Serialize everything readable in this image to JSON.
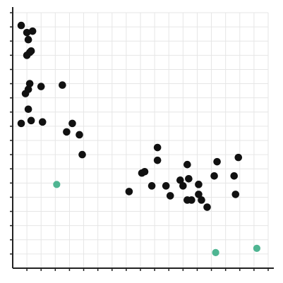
{
  "chart_data": {
    "type": "scatter",
    "title": "",
    "xlabel": "",
    "ylabel": "",
    "xlim": [
      0,
      18
    ],
    "ylim": [
      0,
      18
    ],
    "grid": true,
    "colors": {
      "primary": "#111111",
      "highlight": "#4fb592",
      "grid": "#e6e6e6",
      "axis": "#222222"
    },
    "series": [
      {
        "values": [
          [
            0.6,
            17.1
          ],
          [
            1.0,
            16.6
          ],
          [
            1.4,
            16.7
          ],
          [
            1.1,
            16.1
          ],
          [
            1.2,
            15.2
          ],
          [
            1.0,
            15.0
          ],
          [
            1.3,
            15.3
          ],
          [
            1.2,
            13.0
          ],
          [
            0.9,
            12.3
          ],
          [
            1.1,
            12.6
          ],
          [
            2.0,
            12.8
          ],
          [
            1.1,
            11.2
          ],
          [
            0.6,
            10.2
          ],
          [
            1.3,
            10.4
          ],
          [
            2.1,
            10.3
          ],
          [
            3.5,
            12.9
          ],
          [
            3.8,
            9.6
          ],
          [
            4.2,
            10.2
          ],
          [
            4.7,
            9.4
          ],
          [
            4.9,
            8.0
          ],
          [
            8.2,
            5.4
          ],
          [
            9.1,
            6.7
          ],
          [
            9.3,
            6.8
          ],
          [
            9.8,
            5.8
          ],
          [
            10.2,
            8.5
          ],
          [
            10.2,
            7.6
          ],
          [
            10.8,
            5.8
          ],
          [
            11.1,
            5.1
          ],
          [
            11.8,
            6.2
          ],
          [
            12.0,
            5.8
          ],
          [
            12.3,
            7.3
          ],
          [
            12.4,
            6.3
          ],
          [
            12.3,
            4.8
          ],
          [
            12.6,
            4.8
          ],
          [
            13.1,
            5.9
          ],
          [
            13.1,
            5.2
          ],
          [
            13.3,
            4.8
          ],
          [
            13.7,
            4.3
          ],
          [
            14.2,
            6.5
          ],
          [
            14.4,
            7.5
          ],
          [
            15.6,
            6.5
          ],
          [
            15.9,
            7.8
          ],
          [
            15.7,
            5.2
          ]
        ]
      },
      {
        "values": [
          [
            3.1,
            5.9
          ],
          [
            14.3,
            1.1
          ],
          [
            17.2,
            1.4
          ]
        ]
      }
    ]
  }
}
